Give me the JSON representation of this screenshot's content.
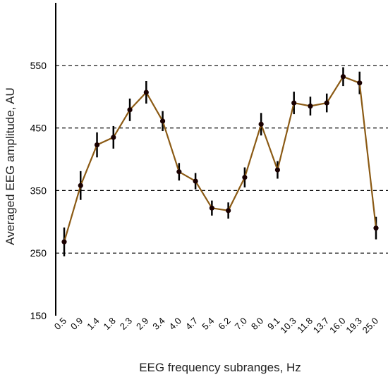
{
  "chart_data": {
    "type": "line",
    "xlabel": "EEG frequency subranges, Hz",
    "ylabel": "Averaged EEG amplitude, AU",
    "ylim": [
      150,
      650
    ],
    "yticks": [
      150,
      250,
      350,
      450,
      550
    ],
    "gridlines": [
      250,
      350,
      450,
      550
    ],
    "grid": "horizontal dashed",
    "categories": [
      "0.5",
      "0.9",
      "1.4",
      "1.8",
      "2.3",
      "2.9",
      "3.4",
      "4.0",
      "4.7",
      "5.4",
      "6.2",
      "7.0",
      "8.0",
      "9.1",
      "10.3",
      "11.8",
      "13.7",
      "16.0",
      "19.3",
      "25.0"
    ],
    "series": [
      {
        "values": [
          268,
          358,
          423,
          435,
          479,
          507,
          461,
          380,
          365,
          322,
          318,
          371,
          456,
          383,
          490,
          485,
          490,
          532,
          522,
          290
        ],
        "error": [
          23,
          23,
          20,
          18,
          18,
          18,
          16,
          14,
          13,
          12,
          13,
          16,
          18,
          14,
          18,
          15,
          15,
          15,
          18,
          18
        ],
        "color": "#8b5a14",
        "marker_color": "#1a0000",
        "errorbar_color": "#000000"
      }
    ]
  }
}
